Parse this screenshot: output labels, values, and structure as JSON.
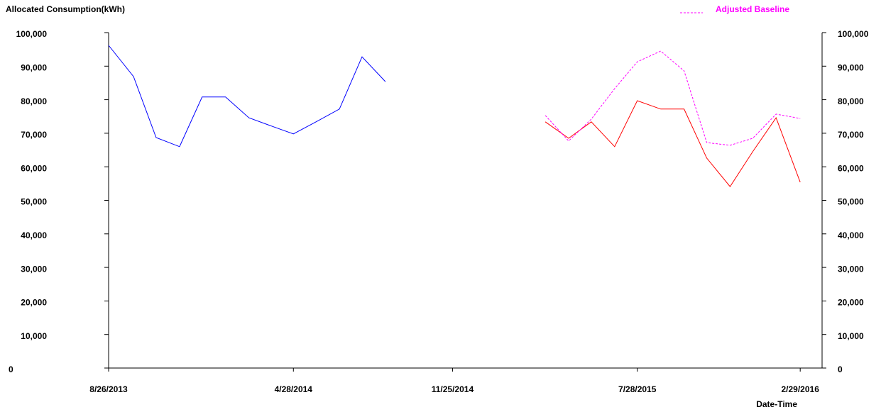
{
  "chart_data": {
    "type": "line",
    "title": "Allocated Consumption(kWh)",
    "x_label": "Date-Time",
    "xlim": [
      "2013-08-26",
      "2016-03-29"
    ],
    "xticks": [
      {
        "value": "2013-08-26",
        "label": "8/26/2013"
      },
      {
        "value": "2014-04-28",
        "label": "4/28/2014"
      },
      {
        "value": "2014-11-25",
        "label": "11/25/2014"
      },
      {
        "value": "2015-07-28",
        "label": "7/28/2015"
      },
      {
        "value": "2016-02-29",
        "label": "2/29/2016"
      }
    ],
    "ylim": [
      0,
      100000
    ],
    "yticks": [
      0,
      {
        "value": 10000,
        "label": "10,000"
      },
      {
        "value": 20000,
        "label": "20,000"
      },
      {
        "value": 30000,
        "label": "30,000"
      },
      {
        "value": 40000,
        "label": "40,000"
      },
      {
        "value": 50000,
        "label": "50,000"
      },
      {
        "value": 60000,
        "label": "60,000"
      },
      {
        "value": 70000,
        "label": "70,000"
      },
      {
        "value": 80000,
        "label": "80,000"
      },
      {
        "value": 90000,
        "label": "90,000"
      },
      {
        "value": 100000,
        "label": "100,000"
      }
    ],
    "y2lim": [
      0,
      100000
    ],
    "y2ticks": [
      0,
      {
        "value": 10000,
        "label": "10,000"
      },
      {
        "value": 20000,
        "label": "20,000"
      },
      {
        "value": 30000,
        "label": "30,000"
      },
      {
        "value": 40000,
        "label": "40,000"
      },
      {
        "value": 50000,
        "label": "50,000"
      },
      {
        "value": 60000,
        "label": "60,000"
      },
      {
        "value": 70000,
        "label": "70,000"
      },
      {
        "value": 80000,
        "label": "80,000"
      },
      {
        "value": 90000,
        "label": "90,000"
      },
      {
        "value": 100000,
        "label": "100,000"
      }
    ],
    "grid": false,
    "legend": "top-right",
    "series": [
      {
        "color": "#0000ff",
        "style": "solid",
        "x": [
          "2013-08-26",
          "2013-09-28",
          "2013-10-28",
          "2013-11-28",
          "2013-12-28",
          "2014-01-28",
          "2014-02-28",
          "2014-03-28",
          "2014-04-28",
          "2014-05-28",
          "2014-06-28",
          "2014-07-28",
          "2014-08-28"
        ],
        "values": [
          96200,
          86900,
          68700,
          66000,
          80800,
          80800,
          74600,
          72300,
          69800,
          73400,
          77200,
          92800,
          85400
        ]
      },
      {
        "color": "#ff0000",
        "style": "solid",
        "x": [
          "2015-03-28",
          "2015-04-28",
          "2015-05-28",
          "2015-06-28",
          "2015-07-28",
          "2015-08-28",
          "2015-09-28",
          "2015-10-28",
          "2015-11-28",
          "2015-12-28",
          "2016-01-28",
          "2016-02-29"
        ],
        "values": [
          73400,
          68500,
          73400,
          66000,
          79700,
          77200,
          77200,
          62600,
          54100,
          64500,
          74600,
          55400
        ]
      },
      {
        "name": "Adjusted Baseline",
        "color": "#ff00ff",
        "style": "dashed",
        "x": [
          "2015-03-28",
          "2015-04-28",
          "2015-05-28",
          "2015-06-28",
          "2015-07-28",
          "2015-08-28",
          "2015-09-28",
          "2015-10-28",
          "2015-11-28",
          "2015-12-28",
          "2016-01-28",
          "2016-02-29"
        ],
        "values": [
          75300,
          67700,
          74200,
          83300,
          91300,
          94500,
          88600,
          67200,
          66400,
          68500,
          75700,
          74400
        ]
      }
    ]
  }
}
